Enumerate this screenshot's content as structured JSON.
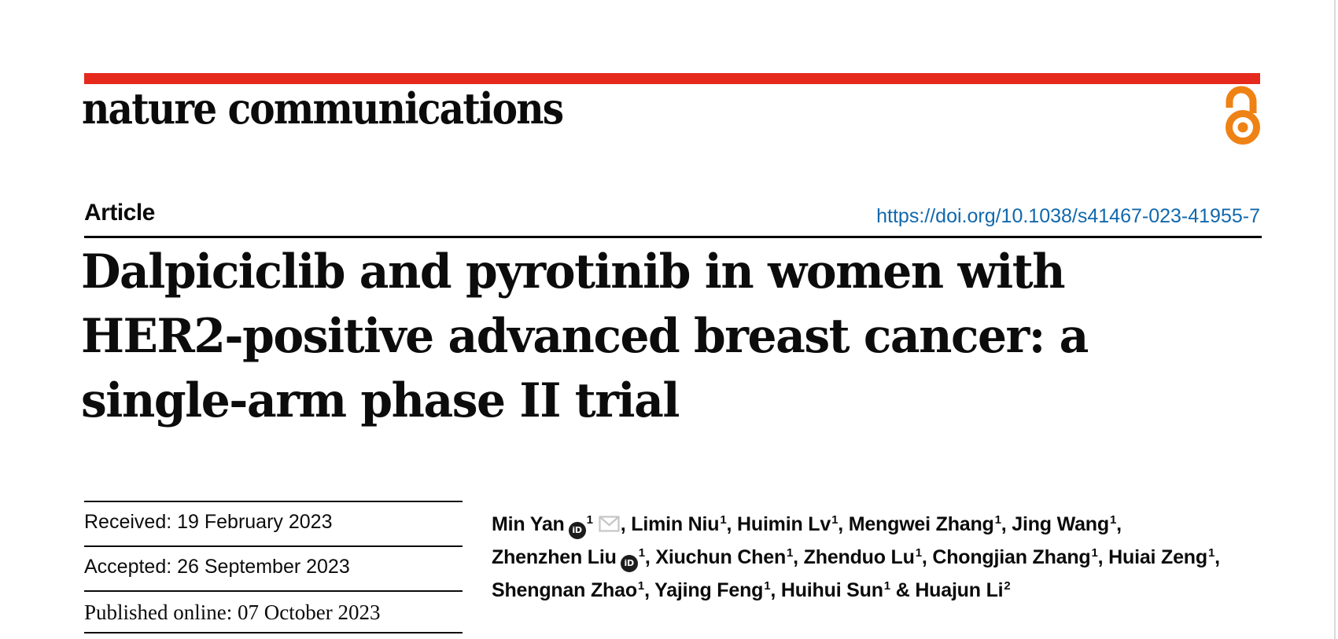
{
  "page": {
    "background_color": "#ffffff",
    "edge_line_color": "#dadada"
  },
  "masthead": {
    "journal_name": "nature communications",
    "brand_bar_color": "#e5291d",
    "open_access_color": "#ef8214"
  },
  "article_header": {
    "kicker": "Article",
    "doi": "https://doi.org/10.1038/s41467-023-41955-7",
    "doi_color": "#1168ad",
    "title_lines": [
      "Dalpiciclib and pyrotinib in women with",
      "HER2-positive advanced breast cancer: a",
      "single-arm phase II trial"
    ]
  },
  "history": {
    "received": "Received: 19 February 2023",
    "accepted": "Accepted: 26 September 2023",
    "published": "Published online: 07 October 2023"
  },
  "icons": {
    "orcid_glyph": "iD",
    "envelope_color": "#c6c6c6"
  },
  "authors": {
    "lines": [
      [
        {
          "name": "Min Yan",
          "aff": "1",
          "orcid": true,
          "email": true,
          "sep": ", "
        },
        {
          "name": "Limin Niu",
          "aff": "1",
          "sep": ", "
        },
        {
          "name": "Huimin Lv",
          "aff": "1",
          "sep": ", "
        },
        {
          "name": "Mengwei Zhang",
          "aff": "1",
          "sep": ", "
        },
        {
          "name": "Jing Wang",
          "aff": "1",
          "sep": ","
        }
      ],
      [
        {
          "name": "Zhenzhen Liu",
          "aff": "1",
          "orcid": true,
          "sep": ", "
        },
        {
          "name": "Xiuchun Chen",
          "aff": "1",
          "sep": ", "
        },
        {
          "name": "Zhenduo Lu",
          "aff": "1",
          "sep": ", "
        },
        {
          "name": "Chongjian Zhang",
          "aff": "1",
          "sep": ", "
        },
        {
          "name": "Huiai Zeng",
          "aff": "1",
          "sep": ","
        }
      ],
      [
        {
          "name": "Shengnan Zhao",
          "aff": "1",
          "sep": ", "
        },
        {
          "name": "Yajing Feng",
          "aff": "1",
          "sep": ", "
        },
        {
          "name": "Huihui Sun",
          "aff": "1",
          "sep": " & "
        },
        {
          "name": "Huajun Li",
          "aff": "2",
          "sep": ""
        }
      ]
    ]
  }
}
